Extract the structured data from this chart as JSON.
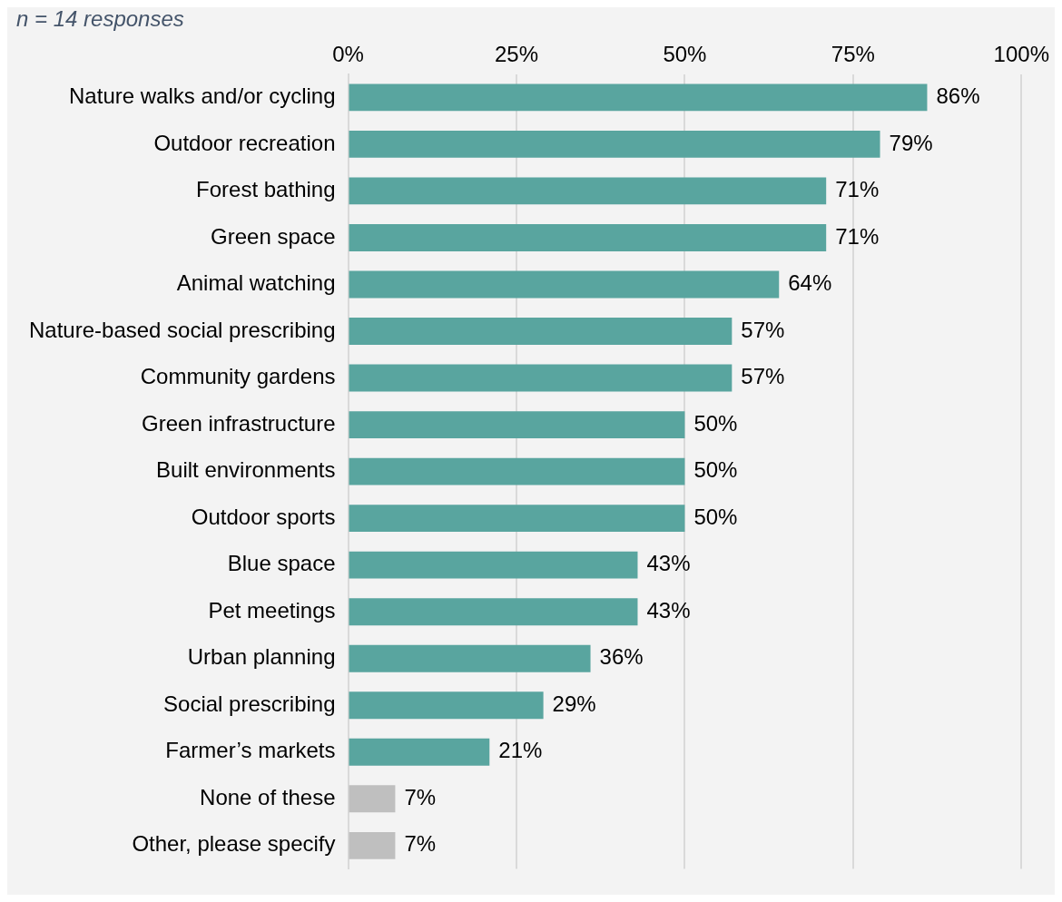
{
  "chart_data": {
    "type": "bar",
    "orientation": "horizontal",
    "subtitle": "n = 14 responses",
    "categories": [
      "Nature walks and/or cycling",
      "Outdoor recreation",
      "Forest bathing",
      "Green space",
      "Animal watching",
      "Nature-based social prescribing",
      "Community gardens",
      "Green infrastructure",
      "Built environments",
      "Outdoor sports",
      "Blue space",
      "Pet meetings",
      "Urban planning",
      "Social prescribing",
      "Farmer’s markets",
      "None of these",
      "Other, please specify"
    ],
    "values": [
      86,
      79,
      71,
      71,
      64,
      57,
      57,
      50,
      50,
      50,
      43,
      43,
      36,
      29,
      21,
      7,
      7
    ],
    "value_labels": [
      "86%",
      "79%",
      "71%",
      "71%",
      "64%",
      "57%",
      "57%",
      "50%",
      "50%",
      "50%",
      "43%",
      "43%",
      "36%",
      "29%",
      "21%",
      "7%",
      "7%"
    ],
    "colors": [
      "#59a59f",
      "#59a59f",
      "#59a59f",
      "#59a59f",
      "#59a59f",
      "#59a59f",
      "#59a59f",
      "#59a59f",
      "#59a59f",
      "#59a59f",
      "#59a59f",
      "#59a59f",
      "#59a59f",
      "#59a59f",
      "#59a59f",
      "#bfbfbf",
      "#bfbfbf"
    ],
    "xlim": [
      0,
      100
    ],
    "xticks": [
      {
        "value": 0,
        "label": "0%"
      },
      {
        "value": 25,
        "label": "25%"
      },
      {
        "value": 50,
        "label": "50%"
      },
      {
        "value": 75,
        "label": "75%"
      },
      {
        "value": 100,
        "label": "100%"
      }
    ],
    "grid": "x",
    "legend": false
  }
}
